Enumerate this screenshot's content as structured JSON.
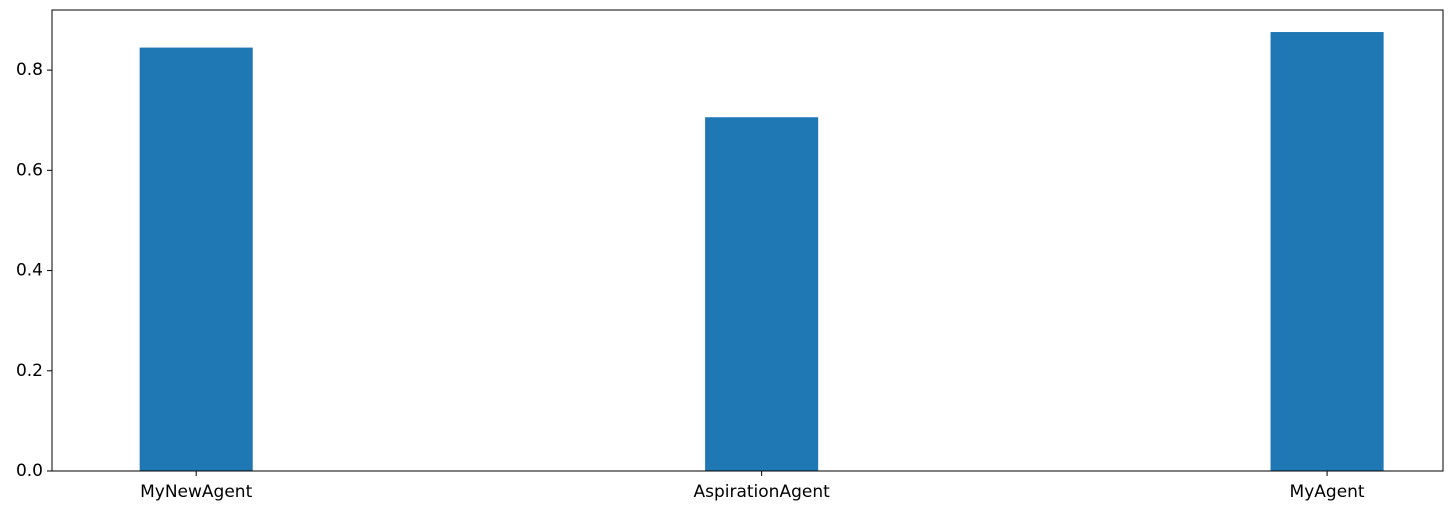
{
  "chart_data": {
    "type": "bar",
    "categories": [
      "MyNewAgent",
      "AspirationAgent",
      "MyAgent"
    ],
    "values": [
      0.845,
      0.706,
      0.876
    ],
    "title": "",
    "xlabel": "",
    "ylabel": "",
    "ylim": [
      0,
      0.92
    ],
    "yticks": [
      0.0,
      0.2,
      0.4,
      0.6,
      0.8
    ],
    "ytick_labels": [
      "0.0",
      "0.2",
      "0.4",
      "0.6",
      "0.8"
    ],
    "grid": false,
    "legend": "none",
    "bar_color": "#1f77b4"
  }
}
